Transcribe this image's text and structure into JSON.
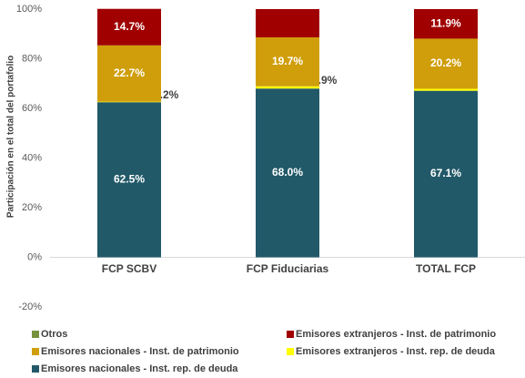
{
  "chart_data": {
    "type": "stacked_bar",
    "y_label": "Participación en el total del portafolio",
    "categories": [
      "FCP SCBV",
      "FCP Fiduciarias",
      "TOTAL FCP"
    ],
    "series": [
      {
        "name": "Emisores nacionales - Inst. rep. de deuda",
        "color": "#215968",
        "values": [
          62.5,
          68.0,
          67.1
        ],
        "value_labels": [
          "62.5%",
          "68.0%",
          "67.1%"
        ]
      },
      {
        "name": "Emisores extranjeros - Inst. rep. de deuda",
        "color": "#FFFF00",
        "values": [
          0.2,
          0.9,
          0.8
        ],
        "value_labels": [
          "0.2%",
          "0.9%",
          null
        ]
      },
      {
        "name": "Emisores nacionales - Inst. de patrimonio",
        "color": "#D09E0A",
        "values": [
          22.7,
          19.7,
          20.2
        ],
        "value_labels": [
          "22.7%",
          "19.7%",
          "20.2%"
        ]
      },
      {
        "name": "Emisores extranjeros - Inst. de patrimonio",
        "color": "#A00000",
        "values": [
          14.7,
          11.4,
          11.9
        ],
        "value_labels": [
          "14.7%",
          null,
          "11.9%"
        ]
      },
      {
        "name": "Otros",
        "color": "#76923C",
        "values": [
          0,
          0,
          0
        ],
        "value_labels": [
          null,
          null,
          null
        ]
      }
    ],
    "ylim": [
      -20,
      100
    ],
    "yticks": [
      {
        "value": -20,
        "label": "-20%"
      },
      {
        "value": 0,
        "label": "0%"
      },
      {
        "value": 20,
        "label": "20%"
      },
      {
        "value": 40,
        "label": "40%"
      },
      {
        "value": 60,
        "label": "60%"
      },
      {
        "value": 80,
        "label": "80%"
      },
      {
        "value": 100,
        "label": "100%"
      }
    ],
    "grid": false
  }
}
